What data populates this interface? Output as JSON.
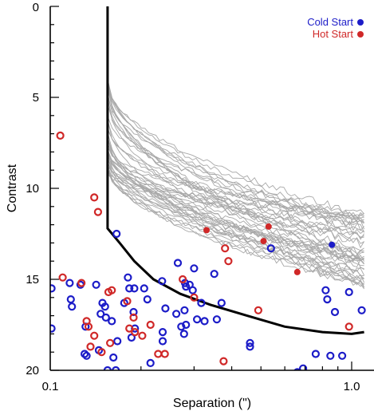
{
  "chart_data": {
    "type": "scatter",
    "xscale": "log",
    "xlim": [
      0.1,
      1.1
    ],
    "ylim": [
      0,
      20
    ],
    "y_inverted": true,
    "xlabel": "Separation (\")",
    "ylabel": "Contrast",
    "x_tick_labels": [
      "0.1",
      "1.0"
    ],
    "y_tick_labels": [
      "0",
      "5",
      "10",
      "15",
      "20"
    ],
    "legend": {
      "placement": "top-right",
      "entries": [
        {
          "label": "Cold Start",
          "color": "#1c1cc8"
        },
        {
          "label": "Hot Start",
          "color": "#d02828"
        }
      ]
    },
    "colors": {
      "cold": "#1c1cc8",
      "hot": "#d02828",
      "curves": "#a8a8a8",
      "limit": "#000000"
    },
    "sensitivity_limit": [
      [
        0.155,
        0
      ],
      [
        0.155,
        12.2
      ],
      [
        0.17,
        13.0
      ],
      [
        0.19,
        14.0
      ],
      [
        0.22,
        15.0
      ],
      [
        0.27,
        15.8
      ],
      [
        0.34,
        16.4
      ],
      [
        0.45,
        17.0
      ],
      [
        0.6,
        17.6
      ],
      [
        0.8,
        17.9
      ],
      [
        1.0,
        18.0
      ],
      [
        1.1,
        17.9
      ]
    ],
    "contrast_curves": {
      "count": 45,
      "x_range": [
        0.156,
        1.1
      ],
      "start_contrast_range": [
        3.8,
        9.2
      ],
      "end_contrast_range": [
        11.3,
        15.4
      ],
      "shape_exponent": 0.55
    },
    "series": [
      {
        "name": "Cold Start",
        "marker": "filled",
        "points": [
          [
            0.86,
            13.1
          ]
        ]
      },
      {
        "name": "Hot Start",
        "marker": "filled",
        "points": [
          [
            0.33,
            12.3
          ],
          [
            0.53,
            12.1
          ],
          [
            0.51,
            12.9
          ],
          [
            0.66,
            14.6
          ]
        ]
      },
      {
        "name": "Cold Start",
        "marker": "open",
        "points": [
          [
            0.101,
            15.5
          ],
          [
            0.116,
            15.2
          ],
          [
            0.117,
            16.1
          ],
          [
            0.118,
            16.5
          ],
          [
            0.126,
            15.3
          ],
          [
            0.131,
            17.6
          ],
          [
            0.142,
            15.3
          ],
          [
            0.147,
            16.9
          ],
          [
            0.152,
            16.5
          ],
          [
            0.149,
            16.3
          ],
          [
            0.153,
            17.1
          ],
          [
            0.16,
            17.3
          ],
          [
            0.166,
            12.5
          ],
          [
            0.176,
            16.3
          ],
          [
            0.181,
            14.9
          ],
          [
            0.183,
            15.5
          ],
          [
            0.189,
            16.8
          ],
          [
            0.19,
            15.5
          ],
          [
            0.205,
            15.5
          ],
          [
            0.21,
            16.1
          ],
          [
            0.235,
            15.1
          ],
          [
            0.262,
            16.9
          ],
          [
            0.265,
            14.1
          ],
          [
            0.28,
            15.2
          ],
          [
            0.282,
            15.4
          ],
          [
            0.29,
            15.3
          ],
          [
            0.3,
            14.4
          ],
          [
            0.297,
            15.6
          ],
          [
            0.307,
            17.2
          ],
          [
            0.317,
            16.3
          ],
          [
            0.325,
            17.3
          ],
          [
            0.35,
            14.7
          ],
          [
            0.357,
            17.2
          ],
          [
            0.37,
            16.3
          ],
          [
            0.46,
            18.5
          ],
          [
            0.54,
            13.3
          ],
          [
            0.66,
            20.1
          ],
          [
            0.69,
            19.9
          ],
          [
            0.76,
            19.1
          ],
          [
            0.82,
            15.6
          ],
          [
            0.83,
            16.1
          ],
          [
            0.85,
            19.2
          ],
          [
            0.88,
            16.8
          ],
          [
            0.93,
            19.2
          ],
          [
            0.98,
            15.7
          ],
          [
            0.13,
            19.1
          ],
          [
            0.145,
            18.9
          ],
          [
            0.162,
            19.3
          ],
          [
            0.165,
            20.0
          ],
          [
            0.186,
            18.2
          ],
          [
            0.215,
            19.6
          ],
          [
            0.236,
            18.4
          ],
          [
            0.272,
            17.6
          ],
          [
            0.46,
            18.7
          ],
          [
            0.101,
            17.7
          ],
          [
            0.132,
            19.2
          ],
          [
            0.155,
            20.0
          ],
          [
            0.167,
            18.4
          ],
          [
            0.191,
            17.7
          ],
          [
            0.236,
            17.9
          ],
          [
            0.278,
            18.0
          ],
          [
            0.241,
            16.6
          ],
          [
            0.279,
            16.7
          ],
          [
            0.282,
            17.5
          ],
          [
            1.08,
            16.7
          ]
        ]
      },
      {
        "name": "Hot Start",
        "marker": "open",
        "points": [
          [
            0.108,
            7.1
          ],
          [
            0.14,
            10.5
          ],
          [
            0.144,
            11.3
          ],
          [
            0.11,
            14.9
          ],
          [
            0.127,
            15.2
          ],
          [
            0.16,
            15.6
          ],
          [
            0.132,
            17.3
          ],
          [
            0.134,
            17.6
          ],
          [
            0.14,
            18.1
          ],
          [
            0.136,
            18.7
          ],
          [
            0.148,
            19.0
          ],
          [
            0.158,
            18.5
          ],
          [
            0.18,
            16.2
          ],
          [
            0.189,
            17.1
          ],
          [
            0.183,
            17.7
          ],
          [
            0.191,
            17.9
          ],
          [
            0.202,
            18.1
          ],
          [
            0.228,
            19.1
          ],
          [
            0.24,
            19.1
          ],
          [
            0.275,
            15.0
          ],
          [
            0.3,
            16.0
          ],
          [
            0.318,
            20.2
          ],
          [
            0.376,
            19.5
          ],
          [
            0.38,
            13.3
          ],
          [
            0.39,
            14.0
          ],
          [
            0.49,
            16.7
          ],
          [
            0.98,
            17.6
          ],
          [
            0.215,
            17.5
          ],
          [
            0.156,
            15.7
          ]
        ]
      }
    ]
  }
}
